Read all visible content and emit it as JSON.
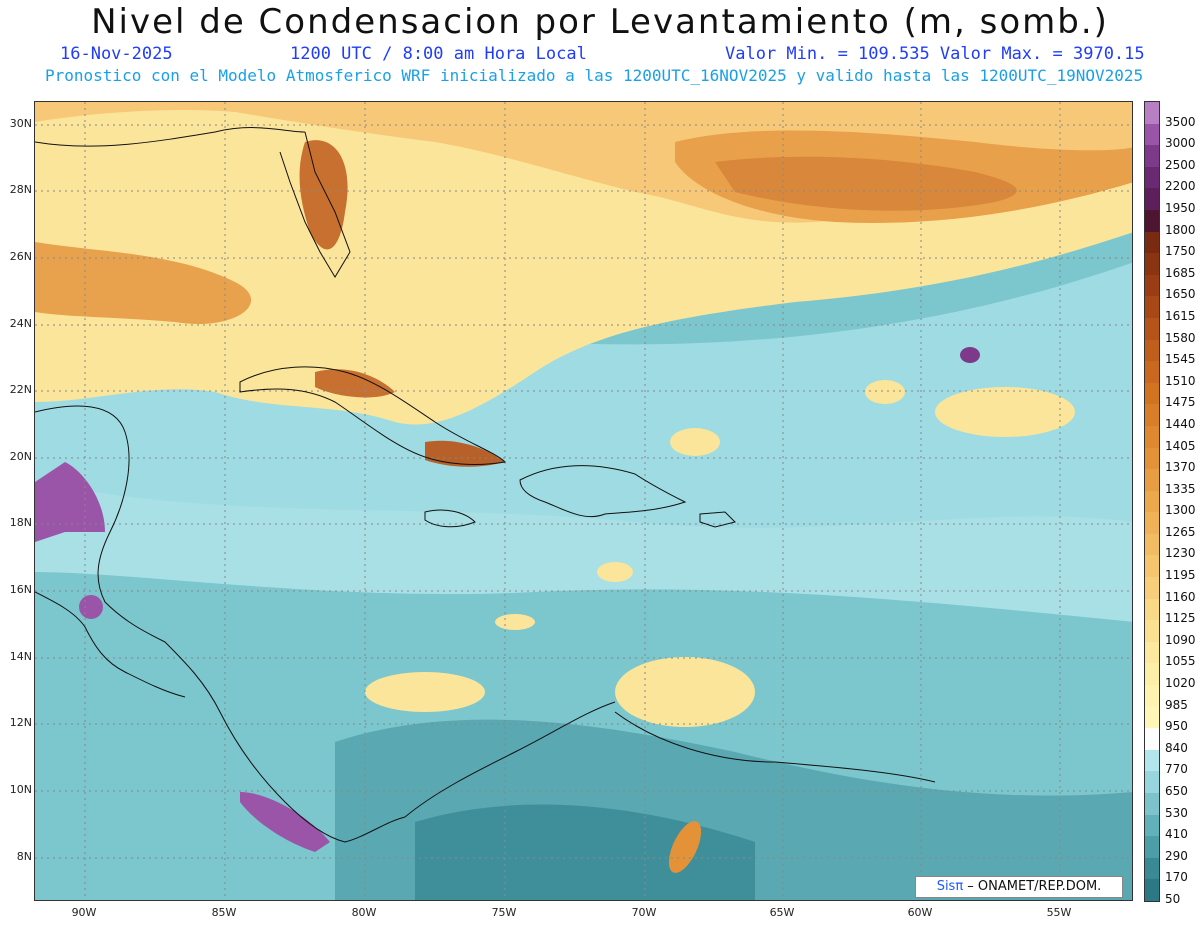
{
  "header": {
    "title": "Nivel de Condensacion por Levantamiento (m, somb.)",
    "date": "16-Nov-2025",
    "time": "1200 UTC / 8:00 am Hora Local",
    "minmax": "Valor Min. = 109.535  Valor Max. = 3970.15",
    "forecast": "Pronostico con el Modelo Atmosferico WRF inicializado a las 1200UTC_16NOV2025 y valido hasta las  1200UTC_19NOV2025"
  },
  "axes": {
    "lat_labels": [
      "30N",
      "28N",
      "26N",
      "24N",
      "22N",
      "20N",
      "18N",
      "16N",
      "14N",
      "12N",
      "10N",
      "8N"
    ],
    "lon_labels": [
      "90W",
      "85W",
      "80W",
      "75W",
      "70W",
      "65W",
      "60W",
      "55W"
    ]
  },
  "colorbar": {
    "labels": [
      "3500",
      "3000",
      "2500",
      "2200",
      "1950",
      "1800",
      "1750",
      "1685",
      "1650",
      "1615",
      "1580",
      "1545",
      "1510",
      "1475",
      "1440",
      "1405",
      "1370",
      "1335",
      "1300",
      "1265",
      "1230",
      "1195",
      "1160",
      "1125",
      "1090",
      "1055",
      "1020",
      "985",
      "950",
      "840",
      "770",
      "650",
      "530",
      "410",
      "290",
      "170",
      "50"
    ],
    "colors": [
      "#b97fc5",
      "#9b55a8",
      "#7e3a8a",
      "#6a2a73",
      "#5c1f5c",
      "#4d1530",
      "#7a2a10",
      "#8a3412",
      "#9b3d14",
      "#a84816",
      "#b55418",
      "#c05e1c",
      "#c9681e",
      "#d27322",
      "#d87d28",
      "#de8830",
      "#e39238",
      "#e79d42",
      "#eba84c",
      "#efb256",
      "#f2bc62",
      "#f5c66e",
      "#f7cf7a",
      "#f9d886",
      "#fbe092",
      "#fce89e",
      "#fdeea8",
      "#fef3b0",
      "#fff6b8",
      "#ffffff",
      "#b3e6ec",
      "#97d6de",
      "#7cc3cc",
      "#62b0ba",
      "#4c9ea8",
      "#3a8a95",
      "#2d7885"
    ]
  },
  "brand": {
    "logo": "Sisπ",
    "text": " – ONAMET/REP.DOM."
  }
}
